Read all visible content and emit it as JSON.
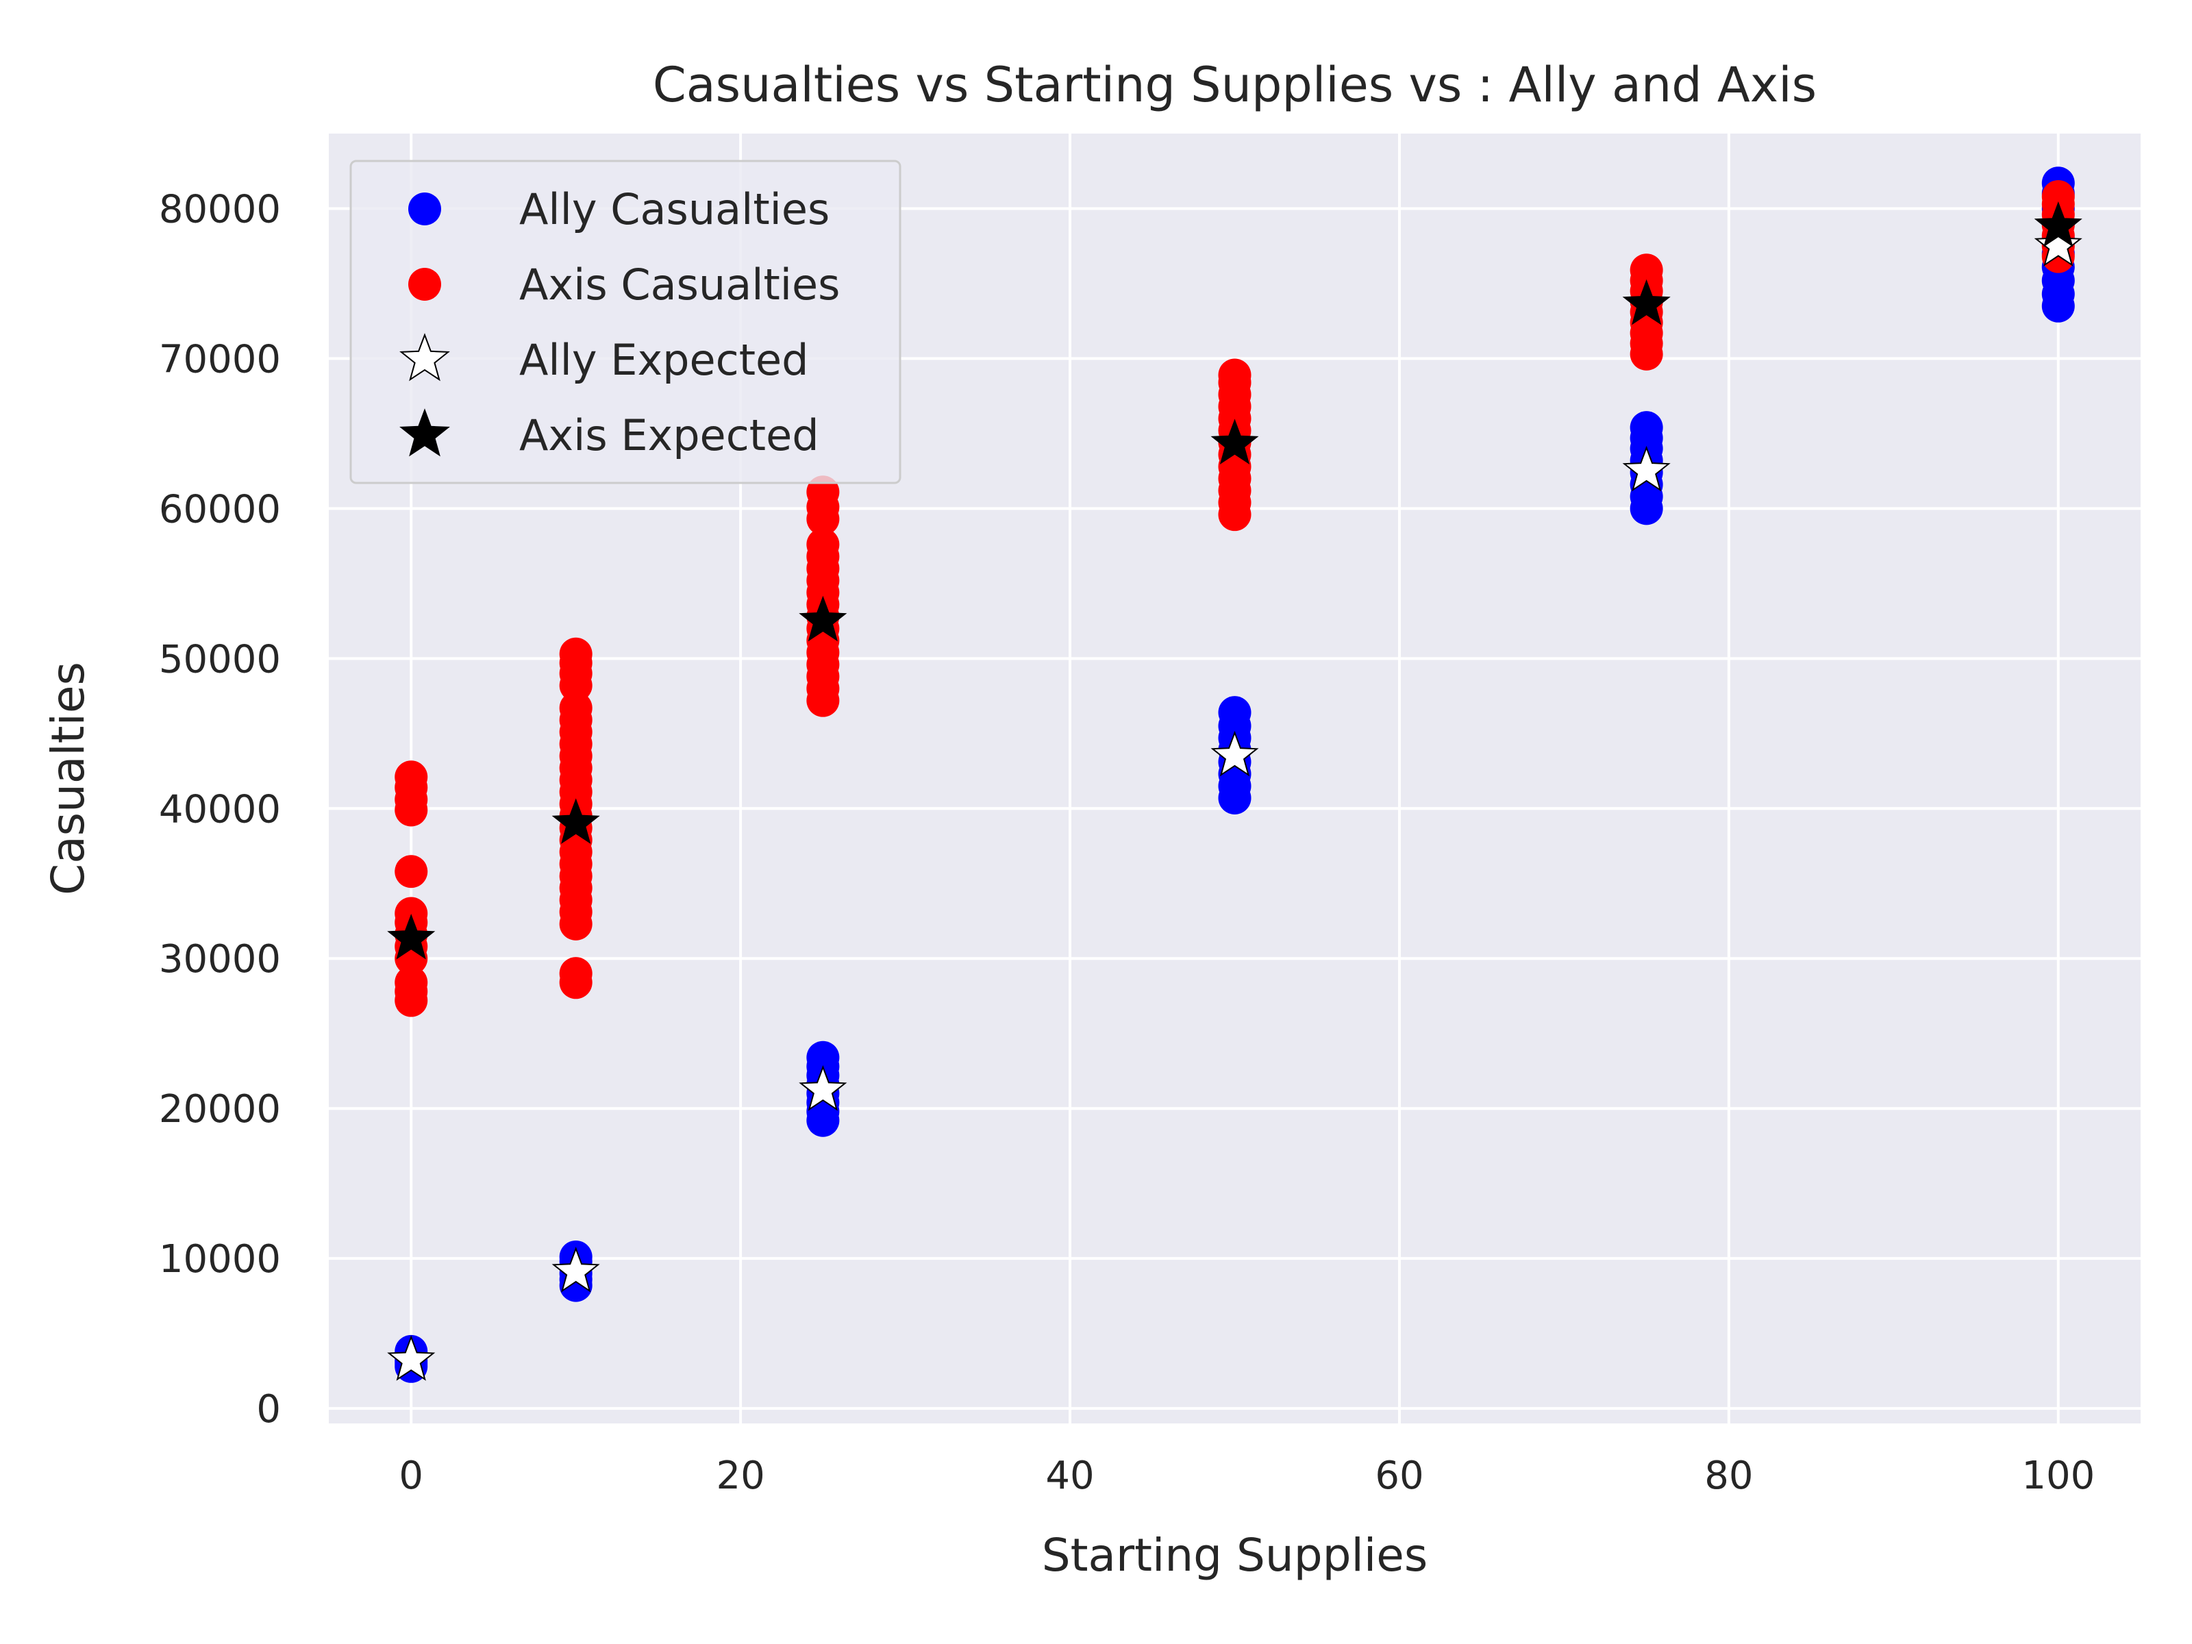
{
  "chart_data": {
    "type": "scatter",
    "title": "Casualties vs Starting Supplies vs : Ally and Axis",
    "xlabel": "Starting Supplies",
    "ylabel": "Casualties",
    "xlim": [
      -5,
      105
    ],
    "ylim": [
      -1000,
      85000
    ],
    "xticks": [
      0,
      20,
      40,
      60,
      80,
      100
    ],
    "yticks": [
      0,
      10000,
      20000,
      30000,
      40000,
      50000,
      60000,
      70000,
      80000
    ],
    "grid": true,
    "legend_position": "top-left",
    "background": "#eaeaf2",
    "series": [
      {
        "name": "Ally Casualties",
        "marker": "circle",
        "color": "#0000ff",
        "points": [
          {
            "x": 0,
            "y": 2800
          },
          {
            "x": 0,
            "y": 3000
          },
          {
            "x": 0,
            "y": 3200
          },
          {
            "x": 0,
            "y": 3500
          },
          {
            "x": 0,
            "y": 3800
          },
          {
            "x": 10,
            "y": 8200
          },
          {
            "x": 10,
            "y": 8600
          },
          {
            "x": 10,
            "y": 9000
          },
          {
            "x": 10,
            "y": 9400
          },
          {
            "x": 10,
            "y": 9800
          },
          {
            "x": 10,
            "y": 10100
          },
          {
            "x": 25,
            "y": 19200
          },
          {
            "x": 25,
            "y": 19800
          },
          {
            "x": 25,
            "y": 20400
          },
          {
            "x": 25,
            "y": 21000
          },
          {
            "x": 25,
            "y": 21600
          },
          {
            "x": 25,
            "y": 22200
          },
          {
            "x": 25,
            "y": 22800
          },
          {
            "x": 25,
            "y": 23400
          },
          {
            "x": 50,
            "y": 40700
          },
          {
            "x": 50,
            "y": 41500
          },
          {
            "x": 50,
            "y": 42300
          },
          {
            "x": 50,
            "y": 43100
          },
          {
            "x": 50,
            "y": 43900
          },
          {
            "x": 50,
            "y": 44700
          },
          {
            "x": 50,
            "y": 45500
          },
          {
            "x": 50,
            "y": 46400
          },
          {
            "x": 75,
            "y": 60000
          },
          {
            "x": 75,
            "y": 60800
          },
          {
            "x": 75,
            "y": 61600
          },
          {
            "x": 75,
            "y": 62400
          },
          {
            "x": 75,
            "y": 63200
          },
          {
            "x": 75,
            "y": 64000
          },
          {
            "x": 75,
            "y": 64700
          },
          {
            "x": 75,
            "y": 65400
          },
          {
            "x": 100,
            "y": 73500
          },
          {
            "x": 100,
            "y": 74300
          },
          {
            "x": 100,
            "y": 75200
          },
          {
            "x": 100,
            "y": 76100
          },
          {
            "x": 100,
            "y": 77000
          },
          {
            "x": 100,
            "y": 78000
          },
          {
            "x": 100,
            "y": 79000
          },
          {
            "x": 100,
            "y": 80000
          },
          {
            "x": 100,
            "y": 81000
          },
          {
            "x": 100,
            "y": 81700
          }
        ]
      },
      {
        "name": "Axis Casualties",
        "marker": "circle",
        "color": "#ff0000",
        "points": [
          {
            "x": 0,
            "y": 27200
          },
          {
            "x": 0,
            "y": 27800
          },
          {
            "x": 0,
            "y": 28400
          },
          {
            "x": 0,
            "y": 30000
          },
          {
            "x": 0,
            "y": 30800
          },
          {
            "x": 0,
            "y": 31600
          },
          {
            "x": 0,
            "y": 32400
          },
          {
            "x": 0,
            "y": 33000
          },
          {
            "x": 0,
            "y": 35800
          },
          {
            "x": 0,
            "y": 39900
          },
          {
            "x": 0,
            "y": 40600
          },
          {
            "x": 0,
            "y": 41400
          },
          {
            "x": 0,
            "y": 42100
          },
          {
            "x": 10,
            "y": 28400
          },
          {
            "x": 10,
            "y": 29000
          },
          {
            "x": 10,
            "y": 32300
          },
          {
            "x": 10,
            "y": 33100
          },
          {
            "x": 10,
            "y": 33900
          },
          {
            "x": 10,
            "y": 34700
          },
          {
            "x": 10,
            "y": 35500
          },
          {
            "x": 10,
            "y": 36300
          },
          {
            "x": 10,
            "y": 37100
          },
          {
            "x": 10,
            "y": 37900
          },
          {
            "x": 10,
            "y": 38700
          },
          {
            "x": 10,
            "y": 39500
          },
          {
            "x": 10,
            "y": 40300
          },
          {
            "x": 10,
            "y": 41100
          },
          {
            "x": 10,
            "y": 41900
          },
          {
            "x": 10,
            "y": 42700
          },
          {
            "x": 10,
            "y": 43500
          },
          {
            "x": 10,
            "y": 44300
          },
          {
            "x": 10,
            "y": 45100
          },
          {
            "x": 10,
            "y": 45900
          },
          {
            "x": 10,
            "y": 46700
          },
          {
            "x": 10,
            "y": 48200
          },
          {
            "x": 10,
            "y": 49000
          },
          {
            "x": 10,
            "y": 49700
          },
          {
            "x": 10,
            "y": 50300
          },
          {
            "x": 25,
            "y": 47200
          },
          {
            "x": 25,
            "y": 48000
          },
          {
            "x": 25,
            "y": 48800
          },
          {
            "x": 25,
            "y": 49600
          },
          {
            "x": 25,
            "y": 50400
          },
          {
            "x": 25,
            "y": 51200
          },
          {
            "x": 25,
            "y": 52000
          },
          {
            "x": 25,
            "y": 52800
          },
          {
            "x": 25,
            "y": 53600
          },
          {
            "x": 25,
            "y": 54400
          },
          {
            "x": 25,
            "y": 55200
          },
          {
            "x": 25,
            "y": 56000
          },
          {
            "x": 25,
            "y": 56800
          },
          {
            "x": 25,
            "y": 57600
          },
          {
            "x": 25,
            "y": 59300
          },
          {
            "x": 25,
            "y": 60100
          },
          {
            "x": 25,
            "y": 61100
          },
          {
            "x": 50,
            "y": 59600
          },
          {
            "x": 50,
            "y": 60400
          },
          {
            "x": 50,
            "y": 61200
          },
          {
            "x": 50,
            "y": 62000
          },
          {
            "x": 50,
            "y": 62800
          },
          {
            "x": 50,
            "y": 63600
          },
          {
            "x": 50,
            "y": 64400
          },
          {
            "x": 50,
            "y": 65200
          },
          {
            "x": 50,
            "y": 66000
          },
          {
            "x": 50,
            "y": 66800
          },
          {
            "x": 50,
            "y": 67600
          },
          {
            "x": 50,
            "y": 68400
          },
          {
            "x": 50,
            "y": 68900
          },
          {
            "x": 75,
            "y": 70300
          },
          {
            "x": 75,
            "y": 71000
          },
          {
            "x": 75,
            "y": 71700
          },
          {
            "x": 75,
            "y": 72400
          },
          {
            "x": 75,
            "y": 73100
          },
          {
            "x": 75,
            "y": 73800
          },
          {
            "x": 75,
            "y": 74500
          },
          {
            "x": 75,
            "y": 75200
          },
          {
            "x": 75,
            "y": 75900
          },
          {
            "x": 100,
            "y": 76800
          },
          {
            "x": 100,
            "y": 77500
          },
          {
            "x": 100,
            "y": 78200
          },
          {
            "x": 100,
            "y": 78900
          },
          {
            "x": 100,
            "y": 79600
          },
          {
            "x": 100,
            "y": 80300
          },
          {
            "x": 100,
            "y": 80800
          }
        ]
      },
      {
        "name": "Ally Expected",
        "marker": "star",
        "color": "#ffffff",
        "edge_color": "#000000",
        "points": [
          {
            "x": 0,
            "y": 3200
          },
          {
            "x": 10,
            "y": 9100
          },
          {
            "x": 25,
            "y": 21200
          },
          {
            "x": 50,
            "y": 43500
          },
          {
            "x": 75,
            "y": 62500
          },
          {
            "x": 100,
            "y": 77500
          }
        ]
      },
      {
        "name": "Axis Expected",
        "marker": "star",
        "color": "#000000",
        "edge_color": "#000000",
        "points": [
          {
            "x": 0,
            "y": 31300
          },
          {
            "x": 10,
            "y": 39000
          },
          {
            "x": 25,
            "y": 52500
          },
          {
            "x": 50,
            "y": 64300
          },
          {
            "x": 75,
            "y": 73600
          },
          {
            "x": 100,
            "y": 78800
          }
        ]
      }
    ]
  }
}
